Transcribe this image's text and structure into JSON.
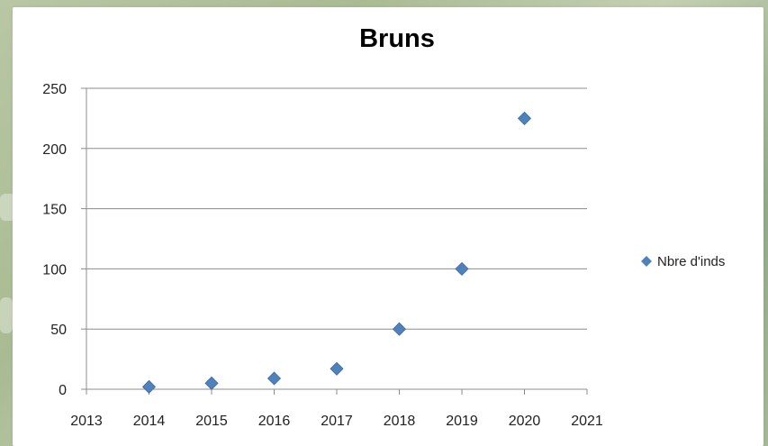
{
  "chart_data": {
    "type": "scatter",
    "title": "Bruns",
    "xlabel": "",
    "ylabel": "",
    "xlim": [
      2013,
      2021
    ],
    "ylim": [
      0,
      250
    ],
    "xticks": [
      "2013",
      "2014",
      "2015",
      "2016",
      "2017",
      "2018",
      "2019",
      "2020",
      "2021"
    ],
    "yticks": [
      "0",
      "50",
      "100",
      "150",
      "200",
      "250"
    ],
    "grid": "horizontal",
    "legend_position": "right",
    "marker": "diamond",
    "colors": {
      "series": "#4f81bd",
      "grid": "#8c8c8c"
    },
    "series": [
      {
        "name": "Nbre d'inds",
        "x": [
          2014,
          2015,
          2016,
          2017,
          2018,
          2019,
          2020
        ],
        "y": [
          2,
          5,
          9,
          17,
          50,
          100,
          225
        ]
      }
    ]
  }
}
